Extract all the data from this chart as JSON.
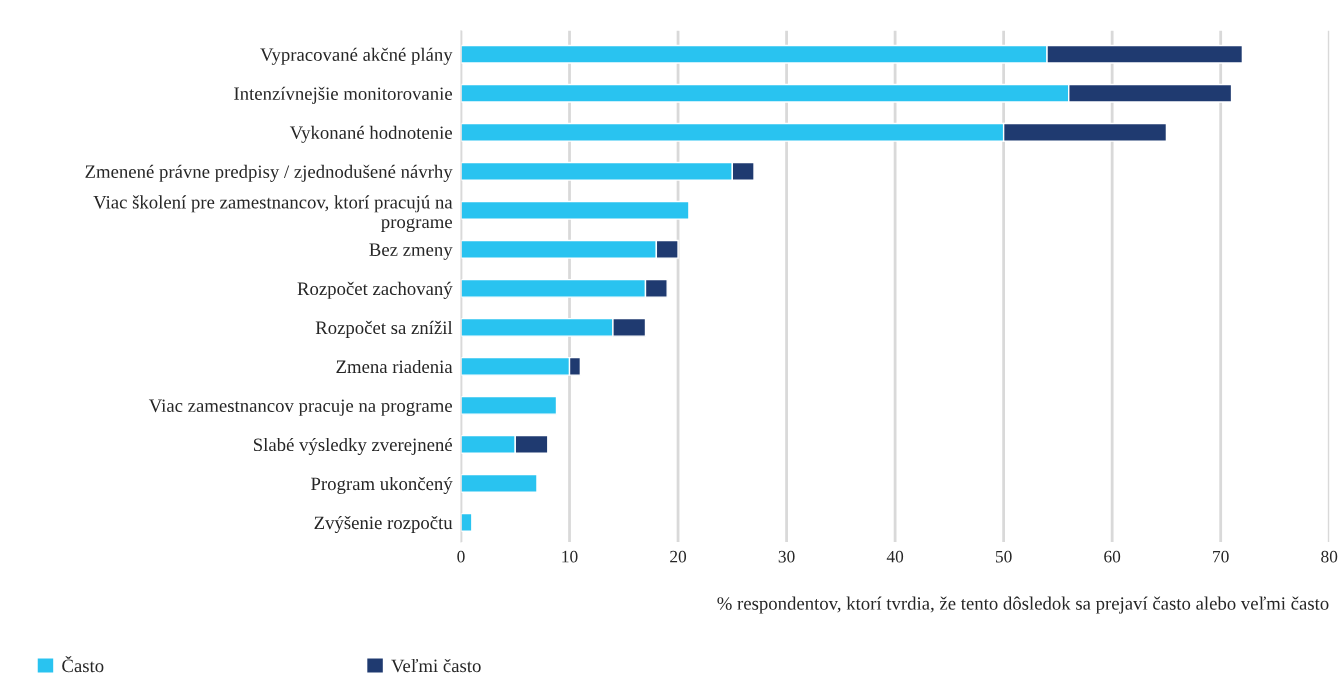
{
  "chart_data": {
    "type": "bar",
    "orientation": "horizontal",
    "stacked": true,
    "categories": [
      "Vypracované akčné plány",
      "Intenzívnejšie monitorovanie",
      "Vykonané hodnotenie",
      "Zmenené právne predpisy / zjednodušené návrhy",
      "Viac školení pre zamestnancov, ktorí pracujú na\nprograme",
      "Bez zmeny",
      "Rozpočet zachovaný",
      "Rozpočet sa znížil",
      "Zmena riadenia",
      "Viac zamestnancov pracuje na programe",
      "Slabé výsledky zverejnené",
      "Program ukončený",
      "Zvýšenie rozpočtu"
    ],
    "series": [
      {
        "name": "Často",
        "color": "#29c3f0",
        "values": [
          54,
          56,
          50,
          25,
          21,
          18,
          17,
          14,
          10,
          8.8,
          5,
          7,
          1
        ]
      },
      {
        "name": "Veľmi často",
        "color": "#1f3a70",
        "values": [
          18,
          15,
          15,
          2,
          null,
          2,
          2,
          3,
          1,
          null,
          3,
          null,
          null
        ]
      }
    ],
    "xlabel": "% respondentov, ktorí tvrdia, že tento dôsledok sa prejaví často alebo veľmi často",
    "xlim": [
      0,
      80
    ],
    "xticks": [
      0,
      10,
      20,
      30,
      40,
      50,
      60,
      70,
      80
    ],
    "grid": "x",
    "legend": "bottom left"
  }
}
